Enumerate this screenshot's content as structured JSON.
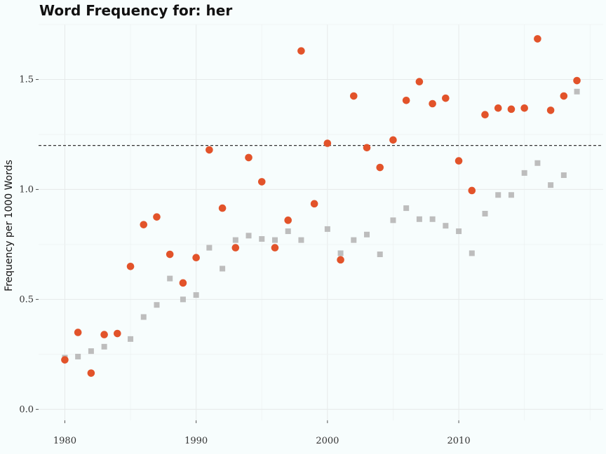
{
  "chart_data": {
    "type": "scatter",
    "title": "Word Frequency for: her",
    "xlabel": "",
    "ylabel": "Frequency per 1000 Words",
    "xlim": [
      1978,
      2021
    ],
    "ylim": [
      -0.05,
      1.75
    ],
    "xticks": [
      1980,
      1990,
      2000,
      2010
    ],
    "yticks": [
      0.0,
      0.5,
      1.0,
      1.5
    ],
    "ytick_labels": [
      "0.0",
      "0.5",
      "1.0",
      "1.5"
    ],
    "reference_line": {
      "y": 1.2,
      "style": "dashed",
      "color": "#333333"
    },
    "grid": true,
    "legend": "none",
    "series": [
      {
        "marker": "circle",
        "color": "#e2532a",
        "x": [
          1980,
          1981,
          1982,
          1983,
          1984,
          1985,
          1986,
          1987,
          1988,
          1989,
          1990,
          1991,
          1992,
          1993,
          1994,
          1995,
          1996,
          1997,
          1998,
          1999,
          2000,
          2001,
          2002,
          2003,
          2004,
          2005,
          2006,
          2007,
          2008,
          2009,
          2010,
          2011,
          2012,
          2013,
          2014,
          2015,
          2016,
          2017,
          2018,
          2019
        ],
        "y": [
          0.225,
          0.35,
          0.165,
          0.34,
          0.345,
          0.65,
          0.84,
          0.875,
          0.705,
          0.575,
          0.69,
          1.18,
          0.915,
          0.735,
          1.145,
          1.035,
          0.735,
          0.86,
          1.63,
          0.935,
          1.21,
          0.68,
          1.425,
          1.19,
          1.1,
          1.225,
          1.405,
          1.49,
          1.39,
          1.415,
          1.13,
          0.995,
          1.34,
          1.37,
          1.365,
          1.37,
          1.685,
          1.36,
          1.425,
          1.495
        ]
      },
      {
        "marker": "square",
        "color": "#bdbdbd",
        "x": [
          1980,
          1981,
          1982,
          1983,
          1985,
          1986,
          1987,
          1988,
          1989,
          1990,
          1991,
          1992,
          1993,
          1994,
          1995,
          1996,
          1997,
          1998,
          2000,
          2001,
          2002,
          2003,
          2004,
          2005,
          2006,
          2007,
          2008,
          2009,
          2010,
          2011,
          2012,
          2013,
          2014,
          2015,
          2016,
          2017,
          2018,
          2019
        ],
        "y": [
          0.235,
          0.24,
          0.265,
          0.285,
          0.32,
          0.42,
          0.475,
          0.595,
          0.5,
          0.52,
          0.735,
          0.64,
          0.77,
          0.79,
          0.775,
          0.77,
          0.81,
          0.77,
          0.82,
          0.71,
          0.77,
          0.795,
          0.705,
          0.86,
          0.915,
          0.865,
          0.865,
          0.835,
          0.81,
          0.71,
          0.89,
          0.975,
          0.975,
          1.075,
          1.12,
          1.02,
          1.065,
          1.445
        ]
      }
    ]
  }
}
